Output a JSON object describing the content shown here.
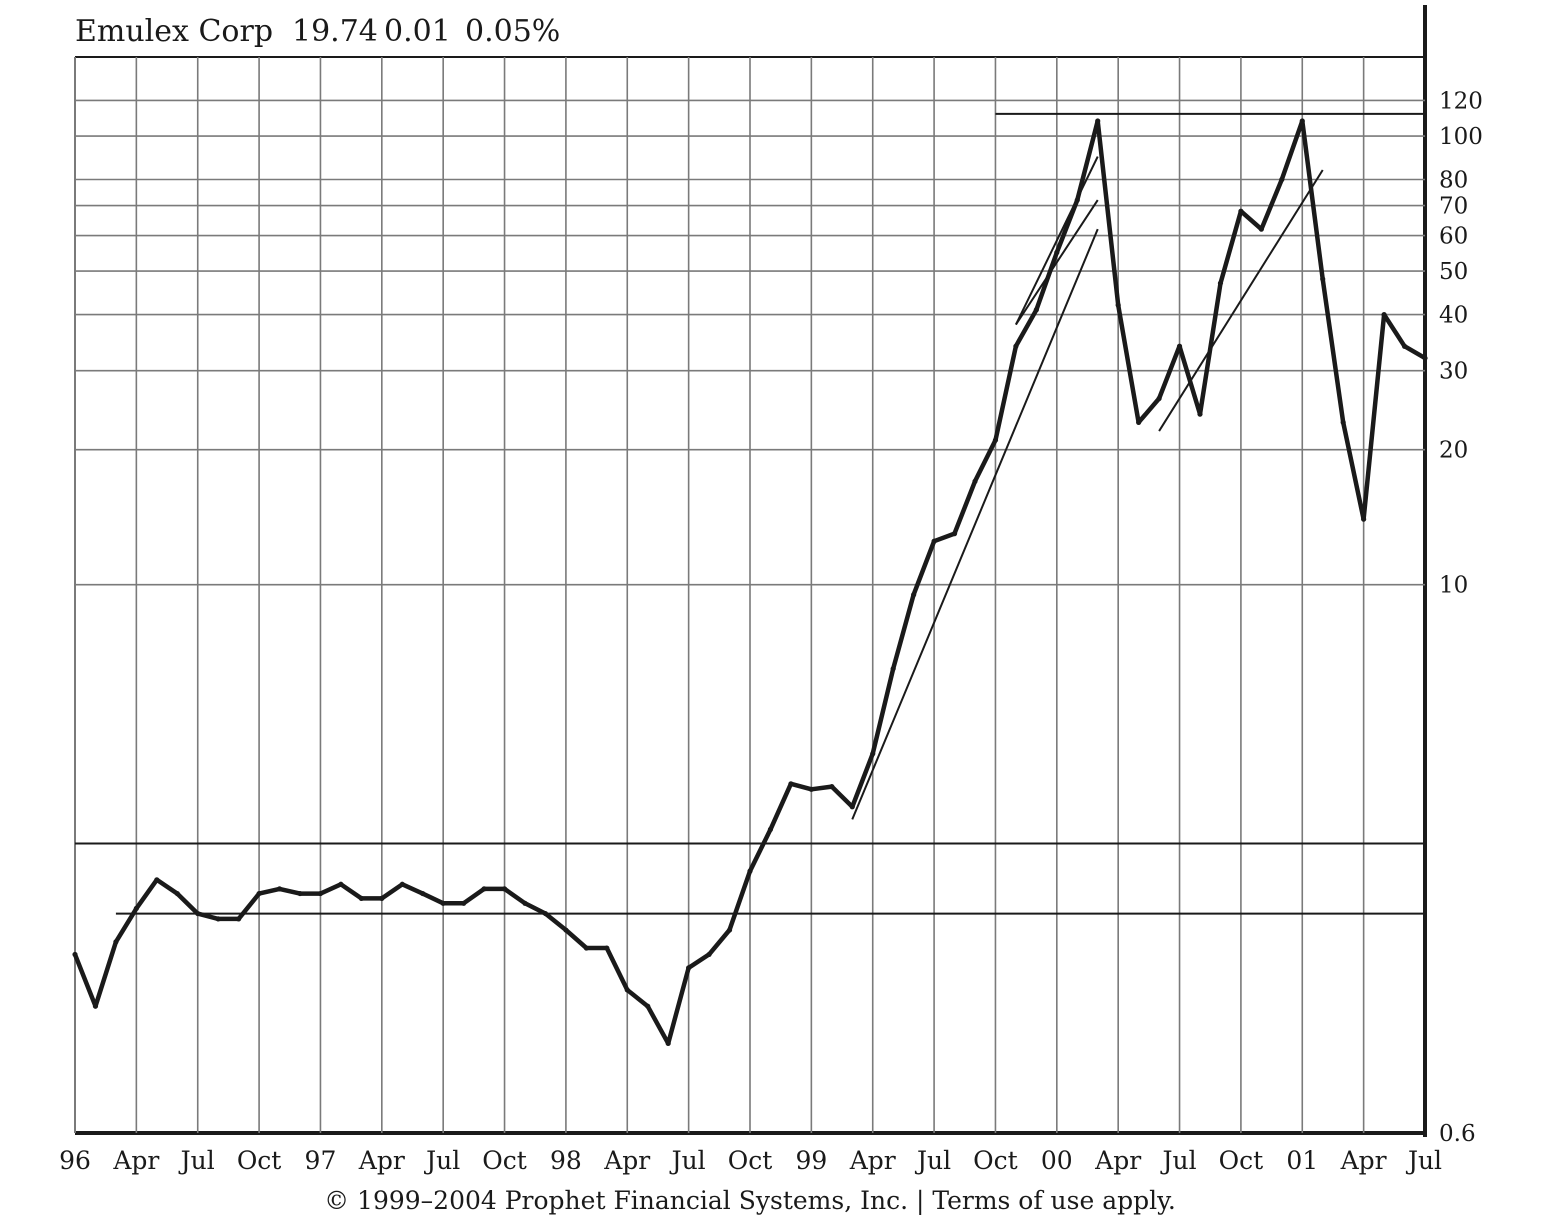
{
  "header": {
    "symbol": "Emulex Corp",
    "price": "19.74",
    "change": "0.01",
    "change_pct": "0.05%"
  },
  "footer": {
    "copyright": "© 1999–2004 Prophet Financial Systems, Inc. | Terms of use apply."
  },
  "colors": {
    "line": "#1a1a1a",
    "grid": "#7a7a7a",
    "background": "#ffffff"
  },
  "chart_data": {
    "type": "line",
    "title": "Emulex Corp",
    "scale": "log",
    "ylim": [
      0.6,
      150
    ],
    "grid": true,
    "y_ticks": [
      {
        "value": 120,
        "label": "120"
      },
      {
        "value": 100,
        "label": "100"
      },
      {
        "value": 80,
        "label": "80"
      },
      {
        "value": 70,
        "label": "70"
      },
      {
        "value": 60,
        "label": "60"
      },
      {
        "value": 50,
        "label": "50"
      },
      {
        "value": 40,
        "label": "40"
      },
      {
        "value": 30,
        "label": "30"
      },
      {
        "value": 20,
        "label": "20"
      },
      {
        "value": 10,
        "label": "10"
      },
      {
        "value": 0.6,
        "label": "0.6"
      }
    ],
    "x_ticks": [
      "96",
      "Apr",
      "Jul",
      "Oct",
      "97",
      "Apr",
      "Jul",
      "Oct",
      "98",
      "Apr",
      "Jul",
      "Oct",
      "99",
      "Apr",
      "Jul",
      "Oct",
      "00",
      "Apr",
      "Jul",
      "Oct",
      "01",
      "Apr",
      "Jul"
    ],
    "series": [
      {
        "values": [
          [
            "1996-01",
            1.5
          ],
          [
            "1996-02",
            1.15
          ],
          [
            "1996-03",
            1.6
          ],
          [
            "1996-04",
            1.9
          ],
          [
            "1996-05",
            2.2
          ],
          [
            "1996-06",
            2.05
          ],
          [
            "1996-07",
            1.85
          ],
          [
            "1996-08",
            1.8
          ],
          [
            "1996-09",
            1.8
          ],
          [
            "1996-10",
            2.05
          ],
          [
            "1996-11",
            2.1
          ],
          [
            "1996-12",
            2.05
          ],
          [
            "1997-01",
            2.05
          ],
          [
            "1997-02",
            2.15
          ],
          [
            "1997-03",
            2.0
          ],
          [
            "1997-04",
            2.0
          ],
          [
            "1997-05",
            2.15
          ],
          [
            "1997-06",
            2.05
          ],
          [
            "1997-07",
            1.95
          ],
          [
            "1997-08",
            1.95
          ],
          [
            "1997-09",
            2.1
          ],
          [
            "1997-10",
            2.1
          ],
          [
            "1997-11",
            1.95
          ],
          [
            "1997-12",
            1.85
          ],
          [
            "1998-01",
            1.7
          ],
          [
            "1998-02",
            1.55
          ],
          [
            "1998-03",
            1.55
          ],
          [
            "1998-04",
            1.25
          ],
          [
            "1998-05",
            1.15
          ],
          [
            "1998-06",
            0.95
          ],
          [
            "1998-07",
            1.4
          ],
          [
            "1998-08",
            1.5
          ],
          [
            "1998-09",
            1.7
          ],
          [
            "1998-10",
            2.3
          ],
          [
            "1998-11",
            2.85
          ],
          [
            "1998-12",
            3.6
          ],
          [
            "1999-01",
            3.5
          ],
          [
            "1999-02",
            3.55
          ],
          [
            "1999-03",
            3.2
          ],
          [
            "1999-04",
            4.2
          ],
          [
            "1999-05",
            6.5
          ],
          [
            "1999-06",
            9.5
          ],
          [
            "1999-07",
            12.5
          ],
          [
            "1999-08",
            13.0
          ],
          [
            "1999-09",
            17.0
          ],
          [
            "1999-10",
            21.0
          ],
          [
            "1999-11",
            34.0
          ],
          [
            "1999-12",
            41.0
          ],
          [
            "2000-01",
            55.0
          ],
          [
            "2000-02",
            72.0
          ],
          [
            "2000-03",
            108.0
          ],
          [
            "2000-04",
            42.0
          ],
          [
            "2000-05",
            23.0
          ],
          [
            "2000-06",
            26.0
          ],
          [
            "2000-07",
            34.0
          ],
          [
            "2000-08",
            24.0
          ],
          [
            "2000-09",
            47.0
          ],
          [
            "2000-10",
            68.0
          ],
          [
            "2000-11",
            62.0
          ],
          [
            "2000-12",
            80.0
          ],
          [
            "2001-01",
            108.0
          ],
          [
            "2001-02",
            48.0
          ],
          [
            "2001-03",
            23.0
          ],
          [
            "2001-04",
            14.0
          ],
          [
            "2001-05",
            40.0
          ],
          [
            "2001-06",
            34.0
          ],
          [
            "2001-07",
            32.0
          ]
        ]
      }
    ],
    "lines": [
      {
        "kind": "horizontal",
        "value": 2.65,
        "from": "1996-01",
        "to": "2001-07"
      },
      {
        "kind": "horizontal",
        "value": 1.85,
        "from": "1996-03",
        "to": "2001-07"
      },
      {
        "kind": "horizontal",
        "value": 112,
        "from": "1999-10",
        "to": "2001-07"
      },
      {
        "kind": "trend",
        "from": [
          "1999-03",
          3.0
        ],
        "to": [
          "2000-03",
          62.0
        ]
      },
      {
        "kind": "trend",
        "from": [
          "1999-11",
          38.0
        ],
        "to": [
          "2000-03",
          90.0
        ]
      },
      {
        "kind": "trend",
        "from": [
          "1999-11",
          38.0
        ],
        "to": [
          "2000-03",
          72.0
        ]
      },
      {
        "kind": "trend",
        "from": [
          "2000-06",
          22.0
        ],
        "to": [
          "2001-02",
          84.0
        ]
      }
    ]
  }
}
